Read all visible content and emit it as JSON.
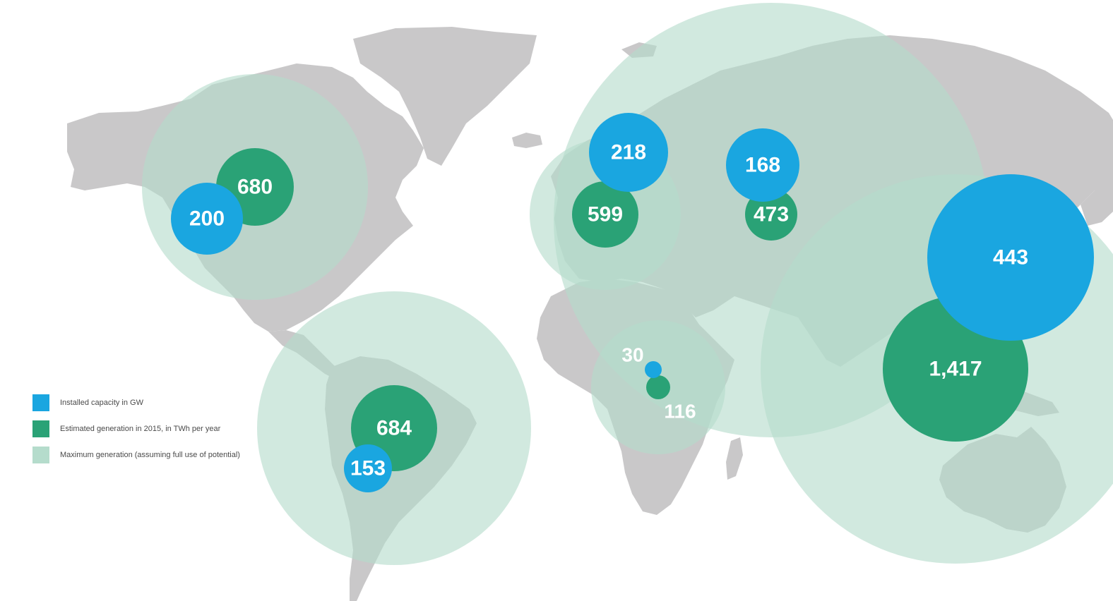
{
  "colors": {
    "installed": "#1aa6e0",
    "estimated": "#2aa276",
    "maximum": "#b5dccc",
    "land": "#c9c8c9"
  },
  "legend": {
    "installed_label": "Installed capacity in GW",
    "estimated_label": "Estimated generation in 2015, in TWh per year",
    "maximum_label": "Maximum generation (assuming full use of potential)"
  },
  "chart_data": {
    "type": "bubble-map",
    "regions": [
      {
        "installed_gw": 200,
        "installed_label": "200",
        "estimated_twh": 680,
        "estimated_label": "680"
      },
      {
        "installed_gw": 153,
        "installed_label": "153",
        "estimated_twh": 684,
        "estimated_label": "684"
      },
      {
        "installed_gw": 218,
        "installed_label": "218",
        "estimated_twh": 599,
        "estimated_label": "599"
      },
      {
        "installed_gw": 168,
        "installed_label": "168",
        "estimated_twh": 473,
        "estimated_label": "473"
      },
      {
        "installed_gw": 30,
        "installed_label": "30",
        "estimated_twh": 116,
        "estimated_label": "116"
      },
      {
        "installed_gw": 443,
        "installed_label": "443",
        "estimated_twh": 1417,
        "estimated_label": "1,417"
      }
    ]
  }
}
